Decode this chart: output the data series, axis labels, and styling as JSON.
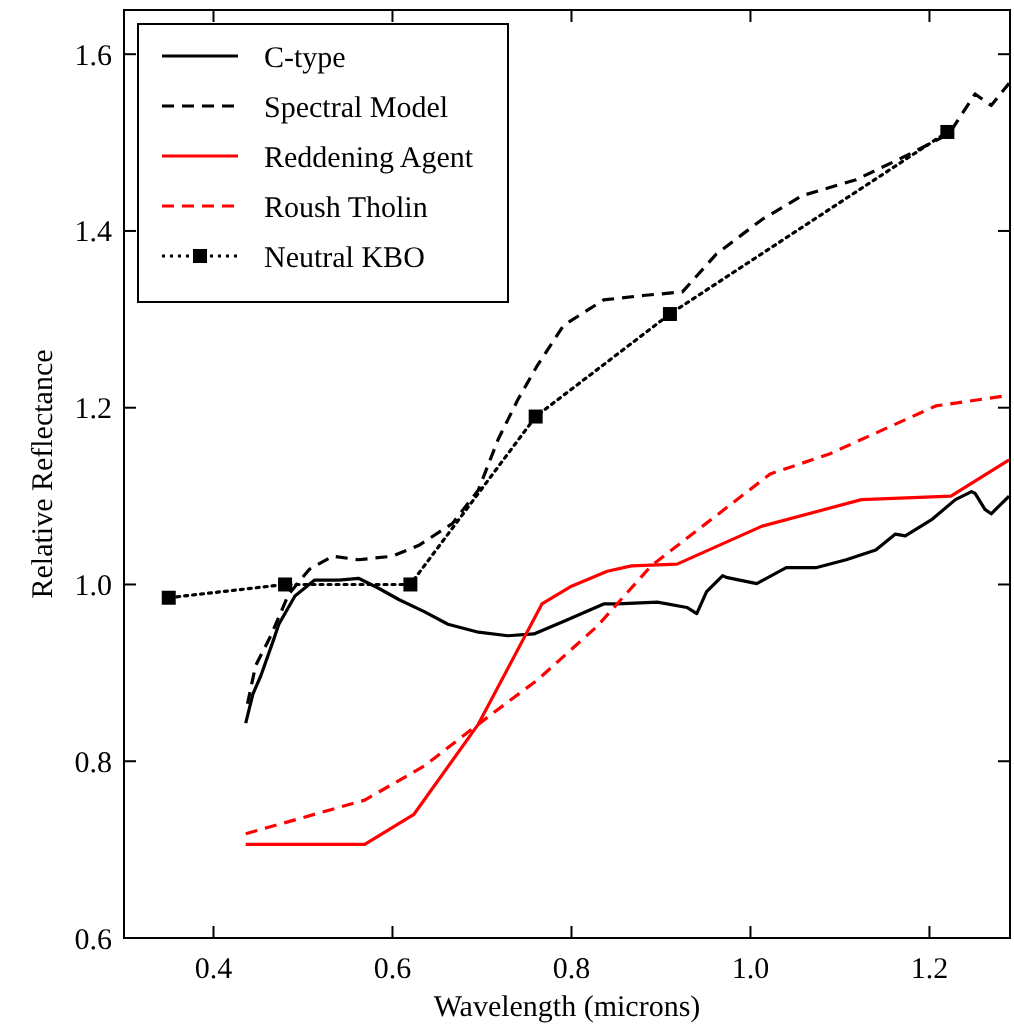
{
  "chart_data": {
    "type": "line",
    "xlabel": "Wavelength (microns)",
    "ylabel": "Relative Reflectance",
    "xlim": [
      0.3,
      1.29
    ],
    "ylim": [
      0.6,
      1.65
    ],
    "xticks": [
      {
        "value": 0.4,
        "label": "0.4"
      },
      {
        "value": 0.6,
        "label": "0.6"
      },
      {
        "value": 0.8,
        "label": "0.8"
      },
      {
        "value": 1.0,
        "label": "1.0"
      },
      {
        "value": 1.2,
        "label": "1.2"
      }
    ],
    "yticks": [
      {
        "value": 0.6,
        "label": "0.6"
      },
      {
        "value": 0.8,
        "label": "0.8"
      },
      {
        "value": 1.0,
        "label": "1.0"
      },
      {
        "value": 1.2,
        "label": "1.2"
      },
      {
        "value": 1.4,
        "label": "1.4"
      },
      {
        "value": 1.6,
        "label": "1.6"
      }
    ],
    "grid": false,
    "legend": "top left",
    "series": [
      {
        "name": "C-type",
        "color": "#000000",
        "line_style": "solid",
        "marker": "none",
        "x": [
          0.436,
          0.444,
          0.453,
          0.467,
          0.473,
          0.491,
          0.513,
          0.54,
          0.562,
          0.584,
          0.607,
          0.636,
          0.662,
          0.696,
          0.729,
          0.758,
          0.791,
          0.836,
          0.851,
          0.896,
          0.929,
          0.94,
          0.951,
          0.969,
          0.973,
          1.007,
          1.04,
          1.073,
          1.107,
          1.14,
          1.162,
          1.173,
          1.202,
          1.229,
          1.247,
          1.251,
          1.262,
          1.269,
          1.289
        ],
        "values": [
          0.843,
          0.876,
          0.897,
          0.937,
          0.955,
          0.987,
          1.005,
          1.005,
          1.007,
          0.996,
          0.983,
          0.969,
          0.955,
          0.946,
          0.942,
          0.944,
          0.958,
          0.978,
          0.978,
          0.98,
          0.974,
          0.967,
          0.992,
          1.01,
          1.008,
          1.001,
          1.019,
          1.019,
          1.028,
          1.039,
          1.057,
          1.055,
          1.073,
          1.096,
          1.105,
          1.103,
          1.085,
          1.08,
          1.1
        ]
      },
      {
        "name": "Spectral Model",
        "color": "#000000",
        "line_style": "dashed",
        "marker": "none",
        "x": [
          0.438,
          0.447,
          0.464,
          0.484,
          0.507,
          0.533,
          0.562,
          0.6,
          0.629,
          0.667,
          0.696,
          0.718,
          0.74,
          0.762,
          0.791,
          0.836,
          0.88,
          0.924,
          0.962,
          1.013,
          1.058,
          1.118,
          1.178,
          1.222,
          1.251,
          1.269,
          1.289
        ],
        "values": [
          0.865,
          0.908,
          0.942,
          0.989,
          1.017,
          1.032,
          1.028,
          1.032,
          1.044,
          1.069,
          1.107,
          1.164,
          1.209,
          1.248,
          1.293,
          1.322,
          1.327,
          1.331,
          1.374,
          1.413,
          1.44,
          1.458,
          1.487,
          1.51,
          1.555,
          1.542,
          1.567
        ]
      },
      {
        "name": "Reddening Agent",
        "color": "#ff0000",
        "line_style": "solid",
        "marker": "none",
        "x": [
          0.436,
          0.569,
          0.624,
          0.696,
          0.767,
          0.8,
          0.84,
          0.867,
          0.918,
          1.013,
          1.124,
          1.224,
          1.289
        ],
        "values": [
          0.706,
          0.706,
          0.74,
          0.842,
          0.978,
          0.998,
          1.015,
          1.021,
          1.023,
          1.066,
          1.096,
          1.1,
          1.141
        ]
      },
      {
        "name": "Roush Tholin",
        "color": "#ff0000",
        "line_style": "dashed",
        "marker": "none",
        "x": [
          0.436,
          0.569,
          0.636,
          0.696,
          0.762,
          0.829,
          0.889,
          1.022,
          1.089,
          1.207,
          1.289
        ],
        "values": [
          0.718,
          0.756,
          0.795,
          0.842,
          0.892,
          0.953,
          1.021,
          1.125,
          1.148,
          1.202,
          1.214
        ]
      },
      {
        "name": "Neutral KBO",
        "color": "#000000",
        "line_style": "dotted",
        "marker": "square",
        "x": [
          0.35,
          0.48,
          0.62,
          0.76,
          0.91,
          1.22
        ],
        "values": [
          0.985,
          1.0,
          1.0,
          1.19,
          1.306,
          1.512
        ]
      }
    ]
  }
}
